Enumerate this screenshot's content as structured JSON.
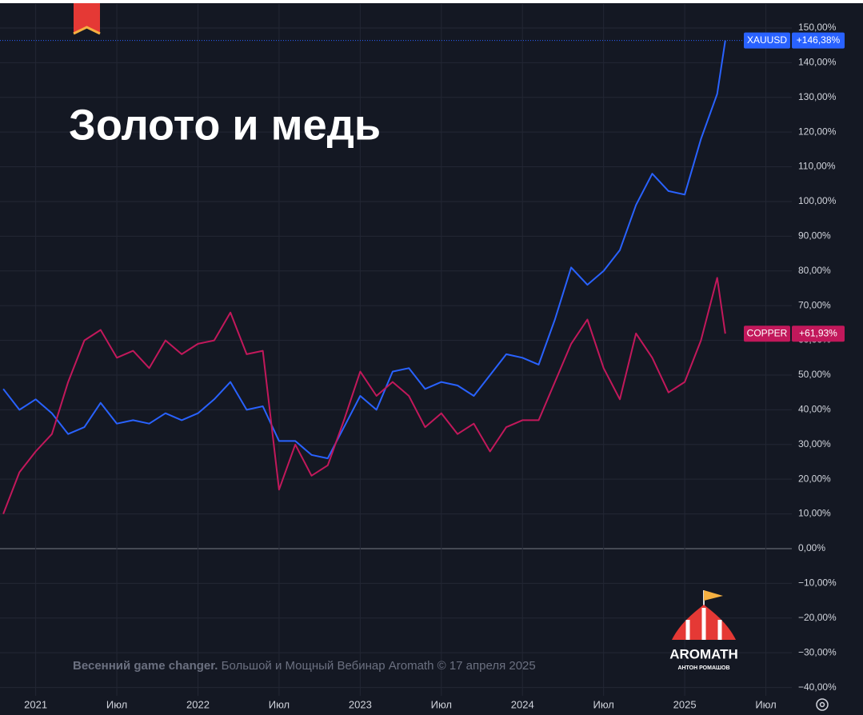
{
  "chart_data": {
    "type": "line",
    "title": "Золото и медь",
    "x": [
      2020.8,
      2020.9,
      2021.0,
      2021.1,
      2021.2,
      2021.3,
      2021.4,
      2021.5,
      2021.6,
      2021.7,
      2021.8,
      2021.9,
      2022.0,
      2022.1,
      2022.2,
      2022.3,
      2022.4,
      2022.5,
      2022.6,
      2022.7,
      2022.8,
      2022.9,
      2023.0,
      2023.1,
      2023.2,
      2023.3,
      2023.4,
      2023.5,
      2023.6,
      2023.7,
      2023.8,
      2023.9,
      2024.0,
      2024.1,
      2024.2,
      2024.3,
      2024.4,
      2024.5,
      2024.6,
      2024.7,
      2024.8,
      2024.9,
      2025.0,
      2025.1,
      2025.2,
      2025.25
    ],
    "series": [
      {
        "name": "XAUUSD",
        "color": "#2962ff",
        "last_label": "+146,38%",
        "values": [
          46,
          40,
          43,
          39,
          33,
          35,
          42,
          36,
          37,
          36,
          39,
          37,
          39,
          43,
          48,
          40,
          41,
          31,
          31,
          27,
          26,
          35,
          44,
          40,
          51,
          52,
          46,
          48,
          47,
          44,
          50,
          56,
          55,
          53,
          66,
          81,
          76,
          80,
          86,
          99,
          108,
          103,
          102,
          118,
          131,
          146.38
        ]
      },
      {
        "name": "COPPER",
        "color": "#c2185b",
        "last_label": "+61,93%",
        "values": [
          10,
          22,
          28,
          33,
          48,
          60,
          63,
          55,
          57,
          52,
          60,
          56,
          59,
          60,
          68,
          56,
          57,
          17,
          30,
          21,
          24,
          37,
          51,
          44,
          48,
          44,
          35,
          39,
          33,
          36,
          28,
          35,
          37,
          37,
          48,
          59,
          66,
          52,
          43,
          62,
          55,
          45,
          48,
          60,
          78,
          61.93
        ]
      }
    ],
    "xlim": [
      2020.78,
      2025.66
    ],
    "xticks": [
      {
        "value": 2021,
        "label": "2021"
      },
      {
        "value": 2021.5,
        "label": "Июл"
      },
      {
        "value": 2022,
        "label": "2022"
      },
      {
        "value": 2022.5,
        "label": "Июл"
      },
      {
        "value": 2023,
        "label": "2023"
      },
      {
        "value": 2023.5,
        "label": "Июл"
      },
      {
        "value": 2024,
        "label": "2024"
      },
      {
        "value": 2024.5,
        "label": "Июл"
      },
      {
        "value": 2025,
        "label": "2025"
      },
      {
        "value": 2025.5,
        "label": "Июл"
      }
    ],
    "ylim": [
      -42.4,
      156.9
    ],
    "yticks": [
      {
        "value": 150,
        "label": "150,00%"
      },
      {
        "value": 140,
        "label": "140,00%"
      },
      {
        "value": 130,
        "label": "130,00%"
      },
      {
        "value": 120,
        "label": "120,00%"
      },
      {
        "value": 110,
        "label": "110,00%"
      },
      {
        "value": 100,
        "label": "100,00%"
      },
      {
        "value": 90,
        "label": "90,00%"
      },
      {
        "value": 80,
        "label": "80,00%"
      },
      {
        "value": 70,
        "label": "70,00%"
      },
      {
        "value": 60,
        "label": "60,00%"
      },
      {
        "value": 50,
        "label": "50,00%"
      },
      {
        "value": 40,
        "label": "40,00%"
      },
      {
        "value": 30,
        "label": "30,00%"
      },
      {
        "value": 20,
        "label": "20,00%"
      },
      {
        "value": 10,
        "label": "10,00%"
      },
      {
        "value": 0,
        "label": "0,00%"
      },
      {
        "value": -10,
        "label": "−10,00%"
      },
      {
        "value": -20,
        "label": "−20,00%"
      },
      {
        "value": -30,
        "label": "−30,00%"
      },
      {
        "value": -40,
        "label": "−40,00%"
      }
    ],
    "grid": true
  },
  "footer": {
    "bold": "Весенний game changer.",
    "text": "Большой и Мощный Вебинар Aromath © 17 апреля 2025"
  },
  "logo": {
    "name": "AROMATH",
    "subtitle": "АНТОН РОМАШОВ"
  }
}
